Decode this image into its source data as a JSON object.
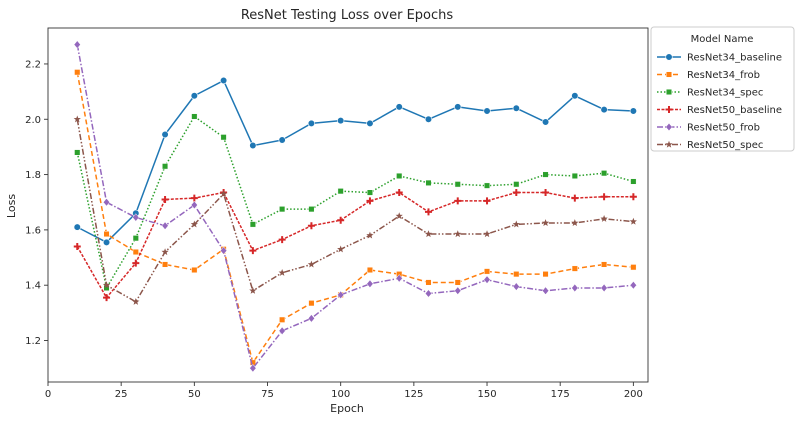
{
  "chart_data": {
    "type": "line",
    "title": "ResNet Testing Loss over Epochs",
    "xlabel": "Epoch",
    "ylabel": "Loss",
    "xlim": [
      0,
      205
    ],
    "ylim": [
      1.05,
      2.33
    ],
    "xticks": [
      0,
      25,
      50,
      75,
      100,
      125,
      150,
      175,
      200
    ],
    "yticks": [
      1.2,
      1.4,
      1.6,
      1.8,
      2.0,
      2.2
    ],
    "grid": false,
    "legend": {
      "title": "Model Name",
      "placement": "outside-right-top"
    },
    "x": [
      10,
      20,
      30,
      40,
      50,
      60,
      70,
      80,
      90,
      100,
      110,
      120,
      130,
      140,
      150,
      160,
      170,
      180,
      190,
      200
    ],
    "series": [
      {
        "name": "ResNet34_baseline",
        "color": "#1f77b4",
        "marker": "circle",
        "dash": "solid",
        "values": [
          1.61,
          1.555,
          1.66,
          1.945,
          2.085,
          2.14,
          1.905,
          1.925,
          1.985,
          1.995,
          1.985,
          2.045,
          2.0,
          2.045,
          2.03,
          2.04,
          1.99,
          2.085,
          2.035,
          2.03
        ]
      },
      {
        "name": "ResNet34_frob",
        "color": "#ff7f0e",
        "marker": "square",
        "dash": "dashed",
        "values": [
          2.17,
          1.585,
          1.52,
          1.475,
          1.455,
          1.53,
          1.12,
          1.275,
          1.335,
          1.365,
          1.455,
          1.44,
          1.41,
          1.41,
          1.45,
          1.44,
          1.44,
          1.46,
          1.475,
          1.465
        ]
      },
      {
        "name": "ResNet34_spec",
        "color": "#2ca02c",
        "marker": "square",
        "dash": "dotted",
        "values": [
          1.88,
          1.39,
          1.57,
          1.83,
          2.01,
          1.935,
          1.62,
          1.675,
          1.675,
          1.74,
          1.735,
          1.795,
          1.77,
          1.765,
          1.76,
          1.765,
          1.8,
          1.795,
          1.805,
          1.775
        ]
      },
      {
        "name": "ResNet50_baseline",
        "color": "#d62728",
        "marker": "plus",
        "dash": "densedash",
        "values": [
          1.54,
          1.355,
          1.48,
          1.71,
          1.715,
          1.735,
          1.525,
          1.565,
          1.615,
          1.635,
          1.705,
          1.735,
          1.665,
          1.705,
          1.705,
          1.735,
          1.735,
          1.715,
          1.72,
          1.72
        ]
      },
      {
        "name": "ResNet50_frob",
        "color": "#9467bd",
        "marker": "diamond",
        "dash": "dashdot",
        "values": [
          2.27,
          1.7,
          1.645,
          1.615,
          1.69,
          1.525,
          1.1,
          1.235,
          1.28,
          1.365,
          1.405,
          1.425,
          1.37,
          1.38,
          1.42,
          1.395,
          1.38,
          1.39,
          1.39,
          1.4
        ]
      },
      {
        "name": "ResNet50_spec",
        "color": "#8c564b",
        "marker": "star",
        "dash": "dashdotdot",
        "values": [
          2.0,
          1.4,
          1.34,
          1.52,
          1.62,
          1.73,
          1.38,
          1.445,
          1.475,
          1.53,
          1.58,
          1.65,
          1.585,
          1.585,
          1.585,
          1.62,
          1.625,
          1.625,
          1.64,
          1.63
        ]
      }
    ]
  }
}
